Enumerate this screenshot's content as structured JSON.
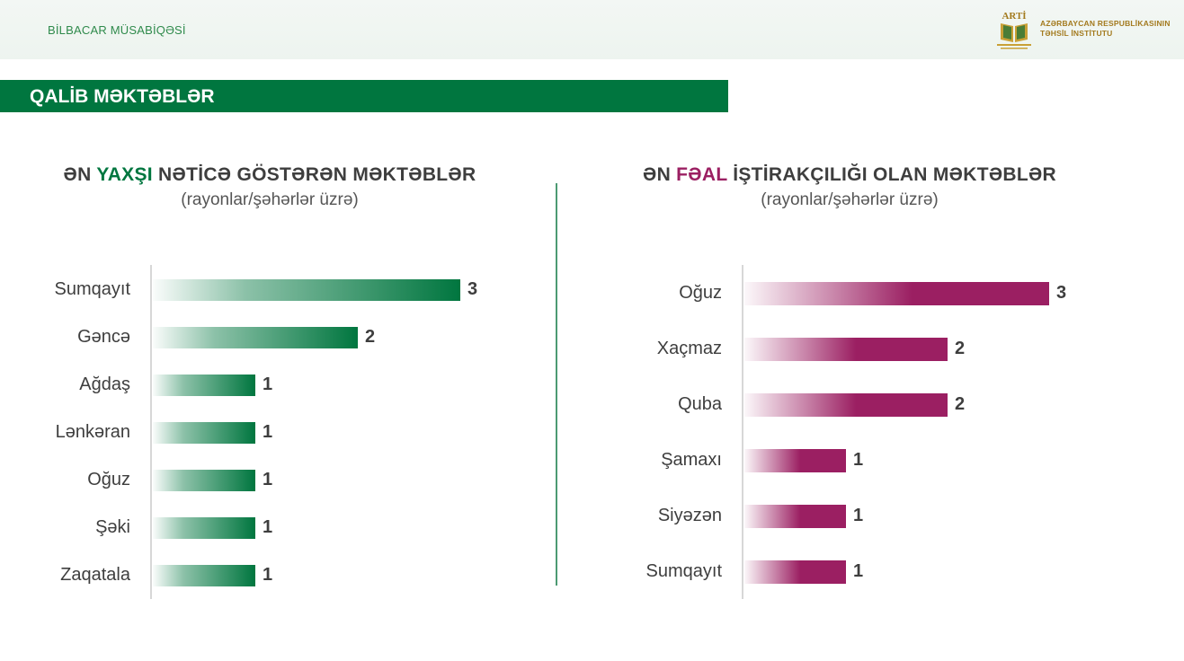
{
  "header": {
    "title": "BİLBACAR MÜSABİQƏSİ",
    "logo_text": "ARTİ",
    "org_line1": "AZƏRBAYCAN RESPUBLİKASININ",
    "org_line2": "TƏHSİL İNSTİTUTU"
  },
  "section": {
    "title": "QALİB MƏKTƏBLƏR"
  },
  "colors": {
    "green": "#00763f",
    "purple": "#9b1f62",
    "text": "#3e3e3e"
  },
  "chart_data": [
    {
      "type": "bar",
      "orientation": "horizontal",
      "title_parts": [
        "ƏN ",
        "YAXŞI",
        " NƏTİCƏ GÖSTƏRƏN MƏKTƏBLƏR"
      ],
      "subtitle": "(rayonlar/şəhərlər üzrə)",
      "categories": [
        "Sumqayıt",
        "Gəncə",
        "Ağdaş",
        "Lənkəran",
        "Oğuz",
        "Şəki",
        "Zaqatala"
      ],
      "values": [
        3,
        2,
        1,
        1,
        1,
        1,
        1
      ],
      "xlim": [
        0,
        3
      ]
    },
    {
      "type": "bar",
      "orientation": "horizontal",
      "title_parts": [
        "ƏN ",
        "FƏAL",
        " İŞTİRAKÇILIĞI OLAN MƏKTƏBLƏR"
      ],
      "subtitle": "(rayonlar/şəhərlər üzrə)",
      "categories": [
        "Oğuz",
        "Xaçmaz",
        "Quba",
        "Şamaxı",
        "Siyəzən",
        "Sumqayıt"
      ],
      "values": [
        3,
        2,
        2,
        1,
        1,
        1
      ],
      "xlim": [
        0,
        3
      ]
    }
  ]
}
